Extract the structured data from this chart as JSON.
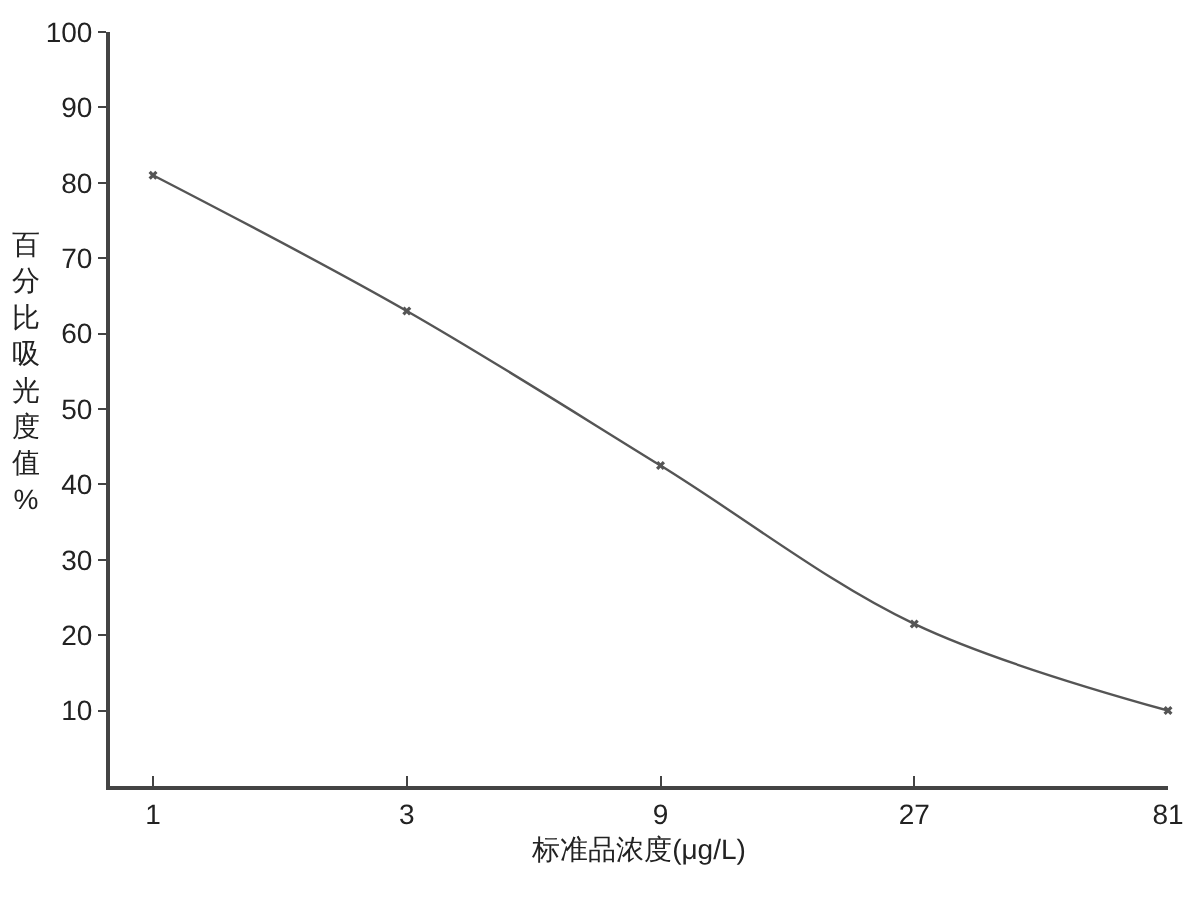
{
  "chart_data": {
    "type": "line",
    "xlabel": "标准品浓度(μg/L)",
    "ylabel": "百分比吸光度值%",
    "x": [
      1,
      3,
      9,
      27,
      81
    ],
    "series": [
      {
        "color": "#555555",
        "values": [
          81,
          63,
          42.5,
          21.5,
          10
        ]
      }
    ],
    "log": "x",
    "xlim": [
      0.83,
      81
    ],
    "xticks": [
      1,
      3,
      9,
      27,
      81
    ],
    "ylim": [
      0,
      100
    ],
    "yticks": [
      10,
      20,
      30,
      40,
      50,
      60,
      70,
      80,
      90,
      100
    ],
    "marker": "cross",
    "line_style": "solid"
  }
}
